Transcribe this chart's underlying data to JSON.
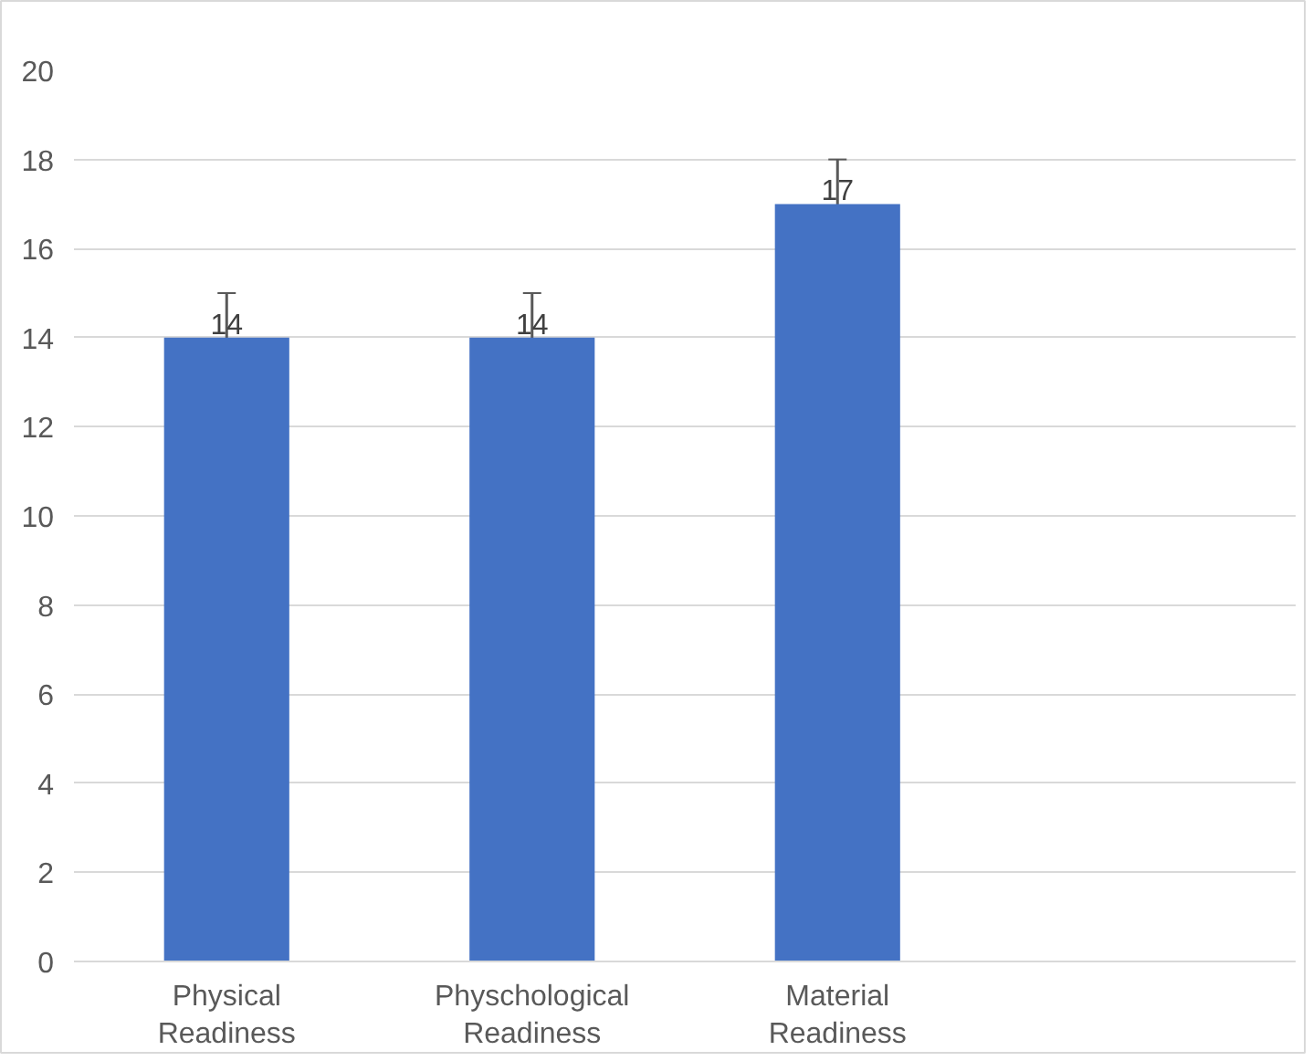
{
  "chart_data": {
    "type": "bar",
    "categories": [
      "Physical Readiness",
      "Physchological Readiness",
      "Material Readiness",
      null
    ],
    "values": [
      14,
      14,
      17,
      null
    ],
    "errors": [
      1,
      1,
      1,
      null
    ],
    "color": "#4472c4",
    "ylim": [
      0,
      20
    ],
    "yticks": [
      0,
      2,
      4,
      6,
      8,
      10,
      12,
      14,
      16,
      18,
      20
    ],
    "grid": "y",
    "data_labels": true
  }
}
